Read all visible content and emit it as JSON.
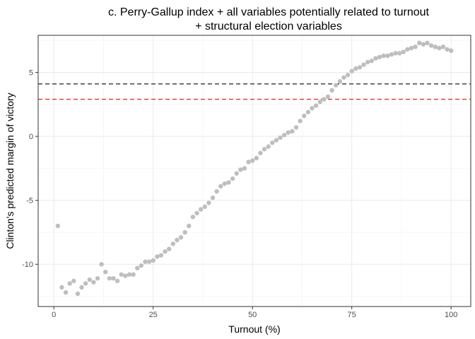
{
  "chart_data": {
    "type": "scatter",
    "title": "c. Perry-Gallup index + all variables potentially related to turnout",
    "subtitle": "+ structural election variables",
    "xlabel": "Turnout (%)",
    "ylabel": "Clinton's predicted margin of victory",
    "xlim": [
      -3.95,
      104.95
    ],
    "ylim": [
      -13.3,
      7.9
    ],
    "x_ticks": [
      0,
      25,
      50,
      75,
      100
    ],
    "y_ticks": [
      -10,
      -5,
      0,
      5
    ],
    "x_tick_labels": [
      "0",
      "25",
      "50",
      "75",
      "100"
    ],
    "y_tick_labels": [
      "-10",
      "-5",
      "0",
      "5"
    ],
    "grid": true,
    "point_color": "#bebebe",
    "reference_lines": [
      {
        "y": 4.1,
        "color": "#333333",
        "style": "dashed"
      },
      {
        "y": 2.9,
        "color": "#e8332a",
        "style": "dashed"
      }
    ],
    "x": [
      1,
      2,
      3,
      4,
      5,
      6,
      7,
      8,
      9,
      10,
      11,
      12,
      13,
      14,
      15,
      16,
      17,
      18,
      19,
      20,
      21,
      22,
      23,
      24,
      25,
      26,
      27,
      28,
      29,
      30,
      31,
      32,
      33,
      34,
      35,
      36,
      37,
      38,
      39,
      40,
      41,
      42,
      43,
      44,
      45,
      46,
      47,
      48,
      49,
      50,
      51,
      52,
      53,
      54,
      55,
      56,
      57,
      58,
      59,
      60,
      61,
      62,
      63,
      64,
      65,
      66,
      67,
      68,
      69,
      70,
      71,
      72,
      73,
      74,
      75,
      76,
      77,
      78,
      79,
      80,
      81,
      82,
      83,
      84,
      85,
      86,
      87,
      88,
      89,
      90,
      91,
      92,
      93,
      94,
      95,
      96,
      97,
      98,
      99,
      100
    ],
    "y": [
      -7.0,
      -11.8,
      -12.2,
      -11.5,
      -11.3,
      -12.3,
      -11.8,
      -11.5,
      -11.2,
      -11.4,
      -11.1,
      -10.0,
      -10.6,
      -11.1,
      -11.1,
      -11.3,
      -10.8,
      -10.9,
      -10.8,
      -10.8,
      -10.3,
      -10.1,
      -9.8,
      -9.8,
      -9.7,
      -9.4,
      -9.3,
      -9.0,
      -8.8,
      -8.4,
      -8.1,
      -7.9,
      -7.5,
      -7.0,
      -6.3,
      -6.0,
      -5.7,
      -5.5,
      -5.2,
      -4.8,
      -4.3,
      -3.9,
      -3.7,
      -3.6,
      -3.3,
      -2.9,
      -2.6,
      -2.5,
      -2.0,
      -1.9,
      -1.7,
      -1.3,
      -1.0,
      -0.8,
      -0.5,
      -0.3,
      -0.1,
      0.1,
      0.3,
      0.4,
      0.7,
      1.2,
      1.6,
      1.9,
      2.2,
      2.4,
      2.7,
      2.9,
      3.1,
      3.6,
      4.0,
      4.3,
      4.6,
      4.8,
      5.1,
      5.3,
      5.4,
      5.6,
      5.8,
      5.9,
      6.1,
      6.2,
      6.3,
      6.3,
      6.4,
      6.5,
      6.5,
      6.6,
      6.8,
      6.9,
      7.0,
      7.3,
      7.2,
      7.3,
      7.1,
      7.0,
      6.9,
      7.0,
      6.8,
      6.7
    ]
  }
}
